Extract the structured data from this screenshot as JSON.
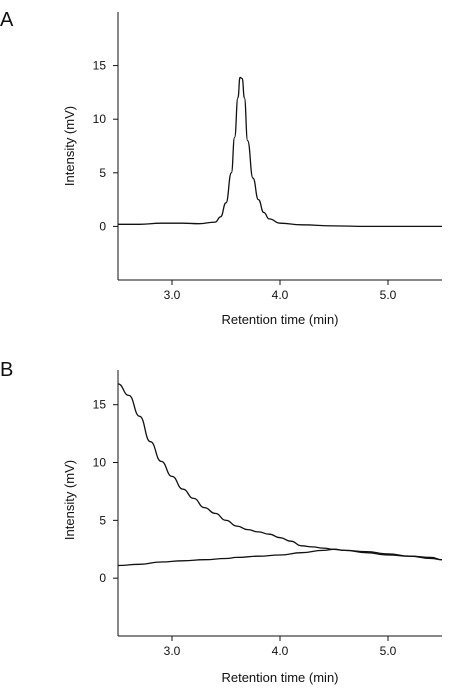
{
  "chart_data": [
    {
      "type": "line",
      "panel": "A",
      "xlabel": "Retention time (min)",
      "ylabel": "Intensity (mV)",
      "xlim": [
        2.5,
        5.5
      ],
      "ylim": [
        -5,
        20
      ],
      "xticks": [
        "3.0",
        "4.0",
        "5.0"
      ],
      "yticks": [
        "0",
        "5",
        "10",
        "15"
      ],
      "xtick_values": [
        3.0,
        4.0,
        5.0
      ],
      "ytick_values": [
        0,
        5,
        10,
        15
      ],
      "series": [
        {
          "x": [
            2.5,
            2.7,
            2.9,
            3.1,
            3.25,
            3.4,
            3.45,
            3.5,
            3.55,
            3.58,
            3.61,
            3.63,
            3.65,
            3.67,
            3.7,
            3.75,
            3.8,
            3.85,
            3.9,
            4.0,
            4.2,
            4.5,
            4.8,
            5.1,
            5.5
          ],
          "y": [
            0.2,
            0.2,
            0.3,
            0.3,
            0.25,
            0.4,
            0.9,
            2.2,
            5.0,
            8.3,
            12.0,
            13.9,
            13.8,
            12.0,
            8.0,
            4.5,
            2.5,
            1.3,
            0.7,
            0.3,
            0.15,
            0.05,
            0.0,
            0.0,
            0.0
          ]
        }
      ]
    },
    {
      "type": "line",
      "panel": "B",
      "xlabel": "Retention time (min)",
      "ylabel": "Intensity (mV)",
      "xlim": [
        2.5,
        5.5
      ],
      "ylim": [
        -5,
        18
      ],
      "xticks": [
        "3.0",
        "4.0",
        "5.0"
      ],
      "yticks": [
        "0",
        "5",
        "10",
        "15"
      ],
      "xtick_values": [
        3.0,
        4.0,
        5.0
      ],
      "ytick_values": [
        0,
        5,
        10,
        15
      ],
      "series": [
        {
          "x": [
            2.5,
            2.6,
            2.7,
            2.8,
            2.9,
            3.0,
            3.1,
            3.2,
            3.3,
            3.4,
            3.5,
            3.6,
            3.7,
            3.8,
            3.9,
            4.0,
            4.1,
            4.2,
            4.3,
            4.4,
            4.5,
            4.6,
            4.8,
            5.0,
            5.2,
            5.4,
            5.5
          ],
          "y": [
            16.8,
            15.8,
            14.0,
            11.8,
            10.1,
            8.8,
            7.7,
            6.9,
            6.1,
            5.6,
            5.0,
            4.5,
            4.2,
            4.0,
            3.8,
            3.5,
            3.2,
            2.8,
            2.7,
            2.6,
            2.5,
            2.4,
            2.2,
            2.0,
            1.9,
            1.7,
            1.6
          ]
        },
        {
          "x": [
            2.5,
            2.7,
            2.9,
            3.1,
            3.3,
            3.5,
            3.6,
            3.8,
            4.0,
            4.2,
            4.4,
            4.5,
            4.6,
            4.8,
            5.0,
            5.2,
            5.4,
            5.5
          ],
          "y": [
            1.1,
            1.2,
            1.4,
            1.5,
            1.6,
            1.7,
            1.8,
            1.9,
            2.0,
            2.2,
            2.4,
            2.5,
            2.4,
            2.3,
            2.1,
            1.9,
            1.8,
            1.6
          ]
        }
      ]
    }
  ]
}
